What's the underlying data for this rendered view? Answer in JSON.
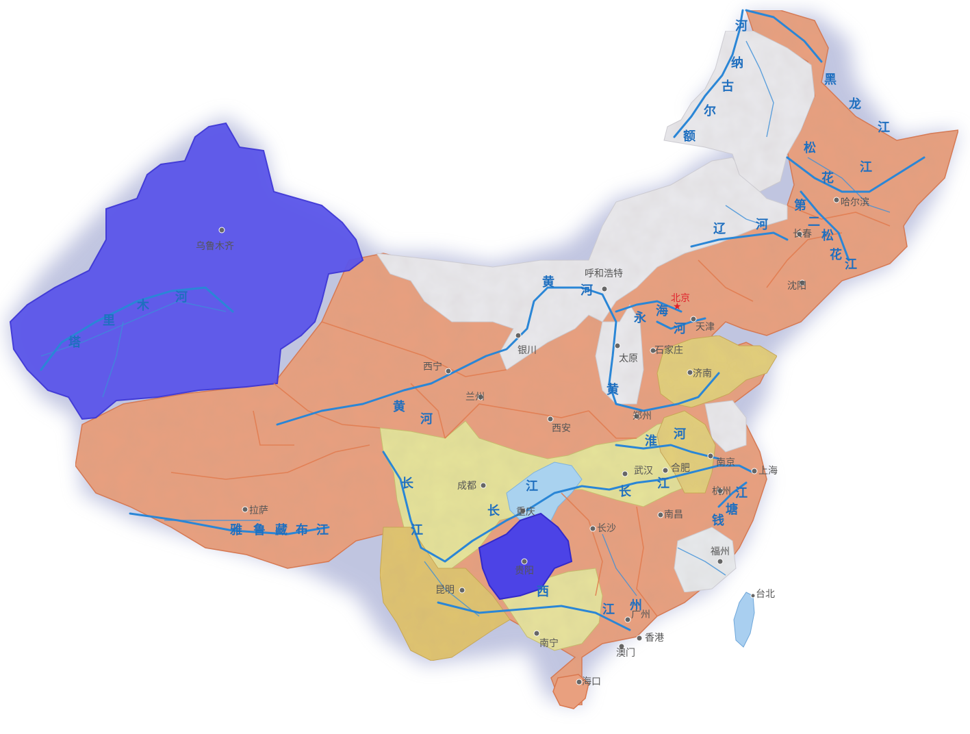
{
  "colors": {
    "salmon": "#e9a07f",
    "salmon_stroke": "#d9774e",
    "blue": "#5a55ea",
    "blue_dark": "#4a3fe6",
    "yellow": "#e7d27c",
    "yellow_light": "#e9e69a",
    "gray": "#e9e9ec",
    "lightblue": "#9fc8ec",
    "river": "#2a86d6"
  },
  "rivers": {
    "tarim": [
      "塔",
      "里",
      "木",
      "河"
    ],
    "ergun": [
      "额",
      "尔",
      "古",
      "纳",
      "河"
    ],
    "heilong": [
      "黑",
      "龙",
      "江"
    ],
    "songhua": [
      "松",
      "花",
      "江"
    ],
    "songhua2": [
      "第",
      "二",
      "松",
      "花",
      "江"
    ],
    "liao": [
      "辽",
      "河"
    ],
    "yellow_north": [
      "黄",
      "河"
    ],
    "yellow_west": [
      "黄",
      "河"
    ],
    "yellow_mid": [
      "黄"
    ],
    "yongding": [
      "永"
    ],
    "haihe": [
      "海",
      "河"
    ],
    "huai": [
      "淮",
      "河"
    ],
    "yangtze_west": [
      "长",
      "江"
    ],
    "yangtze_mid": [
      "长",
      "江"
    ],
    "yangtze_east": [
      "长",
      "江"
    ],
    "qiantang": [
      "江",
      "塘",
      "钱"
    ],
    "zhujiang": [
      "江",
      "州"
    ],
    "yarlung": [
      "雅",
      "鲁",
      "藏",
      "布",
      "江"
    ],
    "xijiang": [
      "西"
    ]
  },
  "cities": {
    "urumqi": "乌鲁木齐",
    "hohhot": "呼和浩特",
    "beijing": "北京",
    "tianjin": "天津",
    "shijiazhuang": "石家庄",
    "taiyuan": "太原",
    "yinchuan": "银川",
    "xining": "西宁",
    "lanzhou": "兰州",
    "xian": "西安",
    "zhengzhou": "郑州",
    "jinan": "济南",
    "shenyang": "沈阳",
    "changchun": "长春",
    "harbin": "哈尔滨",
    "chengdu": "成都",
    "chongqing": "重庆",
    "wuhan": "武汉",
    "hefei": "合肥",
    "nanjing": "南京",
    "shanghai": "上海",
    "hangzhou": "杭州",
    "nanchang": "南昌",
    "changsha": "长沙",
    "fuzhou": "福州",
    "guiyang": "贵阳",
    "kunming": "昆明",
    "nanning": "南宁",
    "guangzhou": "广州",
    "hongkong": "香港",
    "macao": "澳门",
    "haikou": "海口",
    "lhasa": "拉萨",
    "taipei": "台北"
  }
}
